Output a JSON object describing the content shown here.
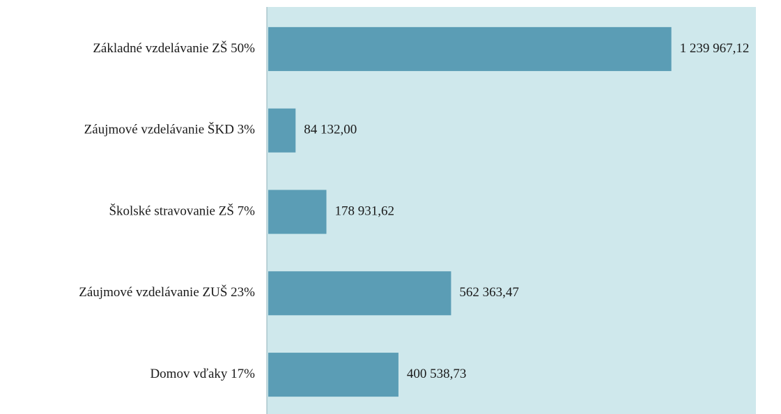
{
  "chart_data": {
    "type": "barh",
    "categories": [
      "Základné vzdelávanie ZŠ 50%",
      "Záujmové vzdelávanie ŠKD 3%",
      "Školské stravovanie ZŠ 7%",
      "Záujmové vzdelávanie ZUŠ 23%",
      "Domov vďaky 17%"
    ],
    "values": [
      1239967.12,
      84132.0,
      178931.62,
      562363.47,
      400538.73
    ],
    "value_labels": [
      "1 239 967,12",
      "84 132,00",
      "178 931,62",
      "562 363,47",
      "400 538,73"
    ],
    "color": "#5b9db5",
    "xlim": [
      0,
      1500000
    ]
  }
}
